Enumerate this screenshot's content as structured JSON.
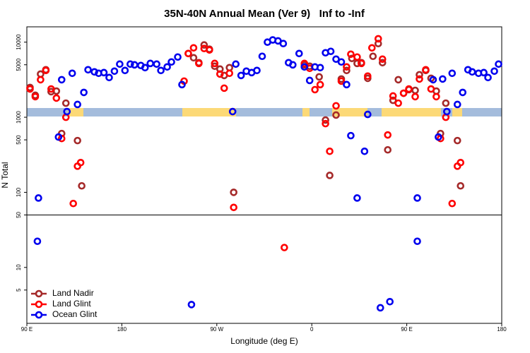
{
  "chart_data": {
    "type": "scatter",
    "title": "35N-40N Annual Mean (Ver 9)   Inf to -Inf",
    "xlabel": "Longitude (deg E)",
    "ylabel": "N Total",
    "xlim": [
      90,
      540
    ],
    "xticks": [
      {
        "value": 90,
        "label": "90 E"
      },
      180,
      {
        "value": 270,
        "label": "90 W"
      },
      {
        "value": 360,
        "label": "0"
      },
      {
        "value": 450,
        "label": "90 E"
      },
      {
        "value": 540,
        "label": "180"
      }
    ],
    "ylim": [
      1.8,
      16000
    ],
    "ylog": true,
    "yticks": [
      5,
      10,
      50,
      100,
      500,
      1000,
      5000,
      10000
    ],
    "hline": 50,
    "legend": "bottom-left",
    "series": [
      {
        "name": "Land Nadir",
        "color": "#a52a2a",
        "x": [
          93,
          98,
          103,
          108,
          113,
          118,
          123,
          127,
          138,
          142,
          243,
          248,
          253,
          258,
          263,
          268,
          273,
          277,
          282,
          286,
          353,
          358,
          367,
          373,
          377,
          383,
          388,
          393,
          398,
          403,
          407,
          413,
          418,
          423,
          427,
          432,
          437,
          442,
          447,
          452,
          458,
          462,
          468,
          473,
          478,
          482,
          487,
          498,
          501
        ],
        "values": [
          2490,
          1960,
          3760,
          4290,
          2190,
          2230,
          607,
          1540,
          489,
          122,
          7060,
          6200,
          5330,
          9170,
          8050,
          4780,
          4380,
          3600,
          4580,
          100,
          4990,
          4780,
          3450,
          917,
          168,
          1070,
          3230,
          4200,
          6070,
          5210,
          5330,
          3300,
          6480,
          9580,
          5330,
          368,
          1680,
          3160,
          2090,
          2330,
          2280,
          3680,
          4200,
          3300,
          2230,
          607,
          1540,
          489,
          122
        ]
      },
      {
        "name": "Land Glint",
        "color": "#ff0000",
        "x": [
          93,
          98,
          103,
          108,
          113,
          118,
          123,
          127,
          134,
          138,
          141,
          239,
          243,
          248,
          253,
          258,
          263,
          268,
          273,
          277,
          282,
          286,
          334,
          353,
          358,
          363,
          368,
          373,
          377,
          383,
          388,
          393,
          397,
          403,
          407,
          413,
          417,
          423,
          427,
          432,
          437,
          442,
          447,
          452,
          458,
          462,
          468,
          473,
          478,
          482,
          487,
          493,
          498,
          501
        ],
        "values": [
          2380,
          1880,
          3160,
          4200,
          2380,
          1800,
          521,
          1000,
          71,
          223,
          249,
          3030,
          7060,
          8400,
          5210,
          8230,
          7870,
          5210,
          3760,
          2440,
          3850,
          63,
          18.4,
          5210,
          4480,
          2330,
          2720,
          822,
          352,
          1420,
          3030,
          4680,
          6910,
          6340,
          5210,
          3530,
          8400,
          11100,
          5940,
          581,
          1920,
          1540,
          2090,
          2380,
          1880,
          3230,
          4290,
          2380,
          1880,
          521,
          1000,
          71,
          223,
          249
        ]
      },
      {
        "name": "Ocean Glint",
        "color": "#0000ee",
        "x": [
          101,
          120,
          123,
          128,
          133,
          138,
          144,
          148,
          154,
          158,
          163,
          168,
          173,
          178,
          183,
          188,
          192,
          198,
          202,
          207,
          213,
          217,
          223,
          227,
          233,
          237,
          285,
          288,
          293,
          298,
          303,
          308,
          313,
          318,
          323,
          328,
          333,
          338,
          342,
          348,
          353,
          358,
          363,
          368,
          373,
          378,
          383,
          388,
          393,
          397,
          403,
          410,
          413,
          100,
          246,
          425,
          434,
          460,
          460,
          475,
          480,
          484,
          488,
          493,
          498,
          503,
          508,
          512,
          518,
          523,
          527,
          533,
          537
        ],
        "values": [
          84,
          545,
          3160,
          1190,
          3850,
          1480,
          2140,
          4290,
          4020,
          3850,
          3930,
          3380,
          4110,
          5100,
          4200,
          5100,
          4990,
          4890,
          4580,
          5210,
          5100,
          4200,
          4680,
          5450,
          6340,
          2720,
          1190,
          5100,
          3600,
          4110,
          3930,
          4200,
          6480,
          10000,
          10700,
          10400,
          9580,
          5330,
          4990,
          7060,
          4680,
          3090,
          4680,
          4580,
          7220,
          7540,
          5940,
          5450,
          2720,
          569,
          84,
          352,
          1090,
          22.3,
          3.2,
          2.9,
          3.5,
          84,
          22.3,
          3160,
          545,
          3230,
          1190,
          3850,
          1480,
          2140,
          4290,
          4020,
          3850,
          3930,
          3380,
          4110,
          5100
        ]
      }
    ]
  }
}
